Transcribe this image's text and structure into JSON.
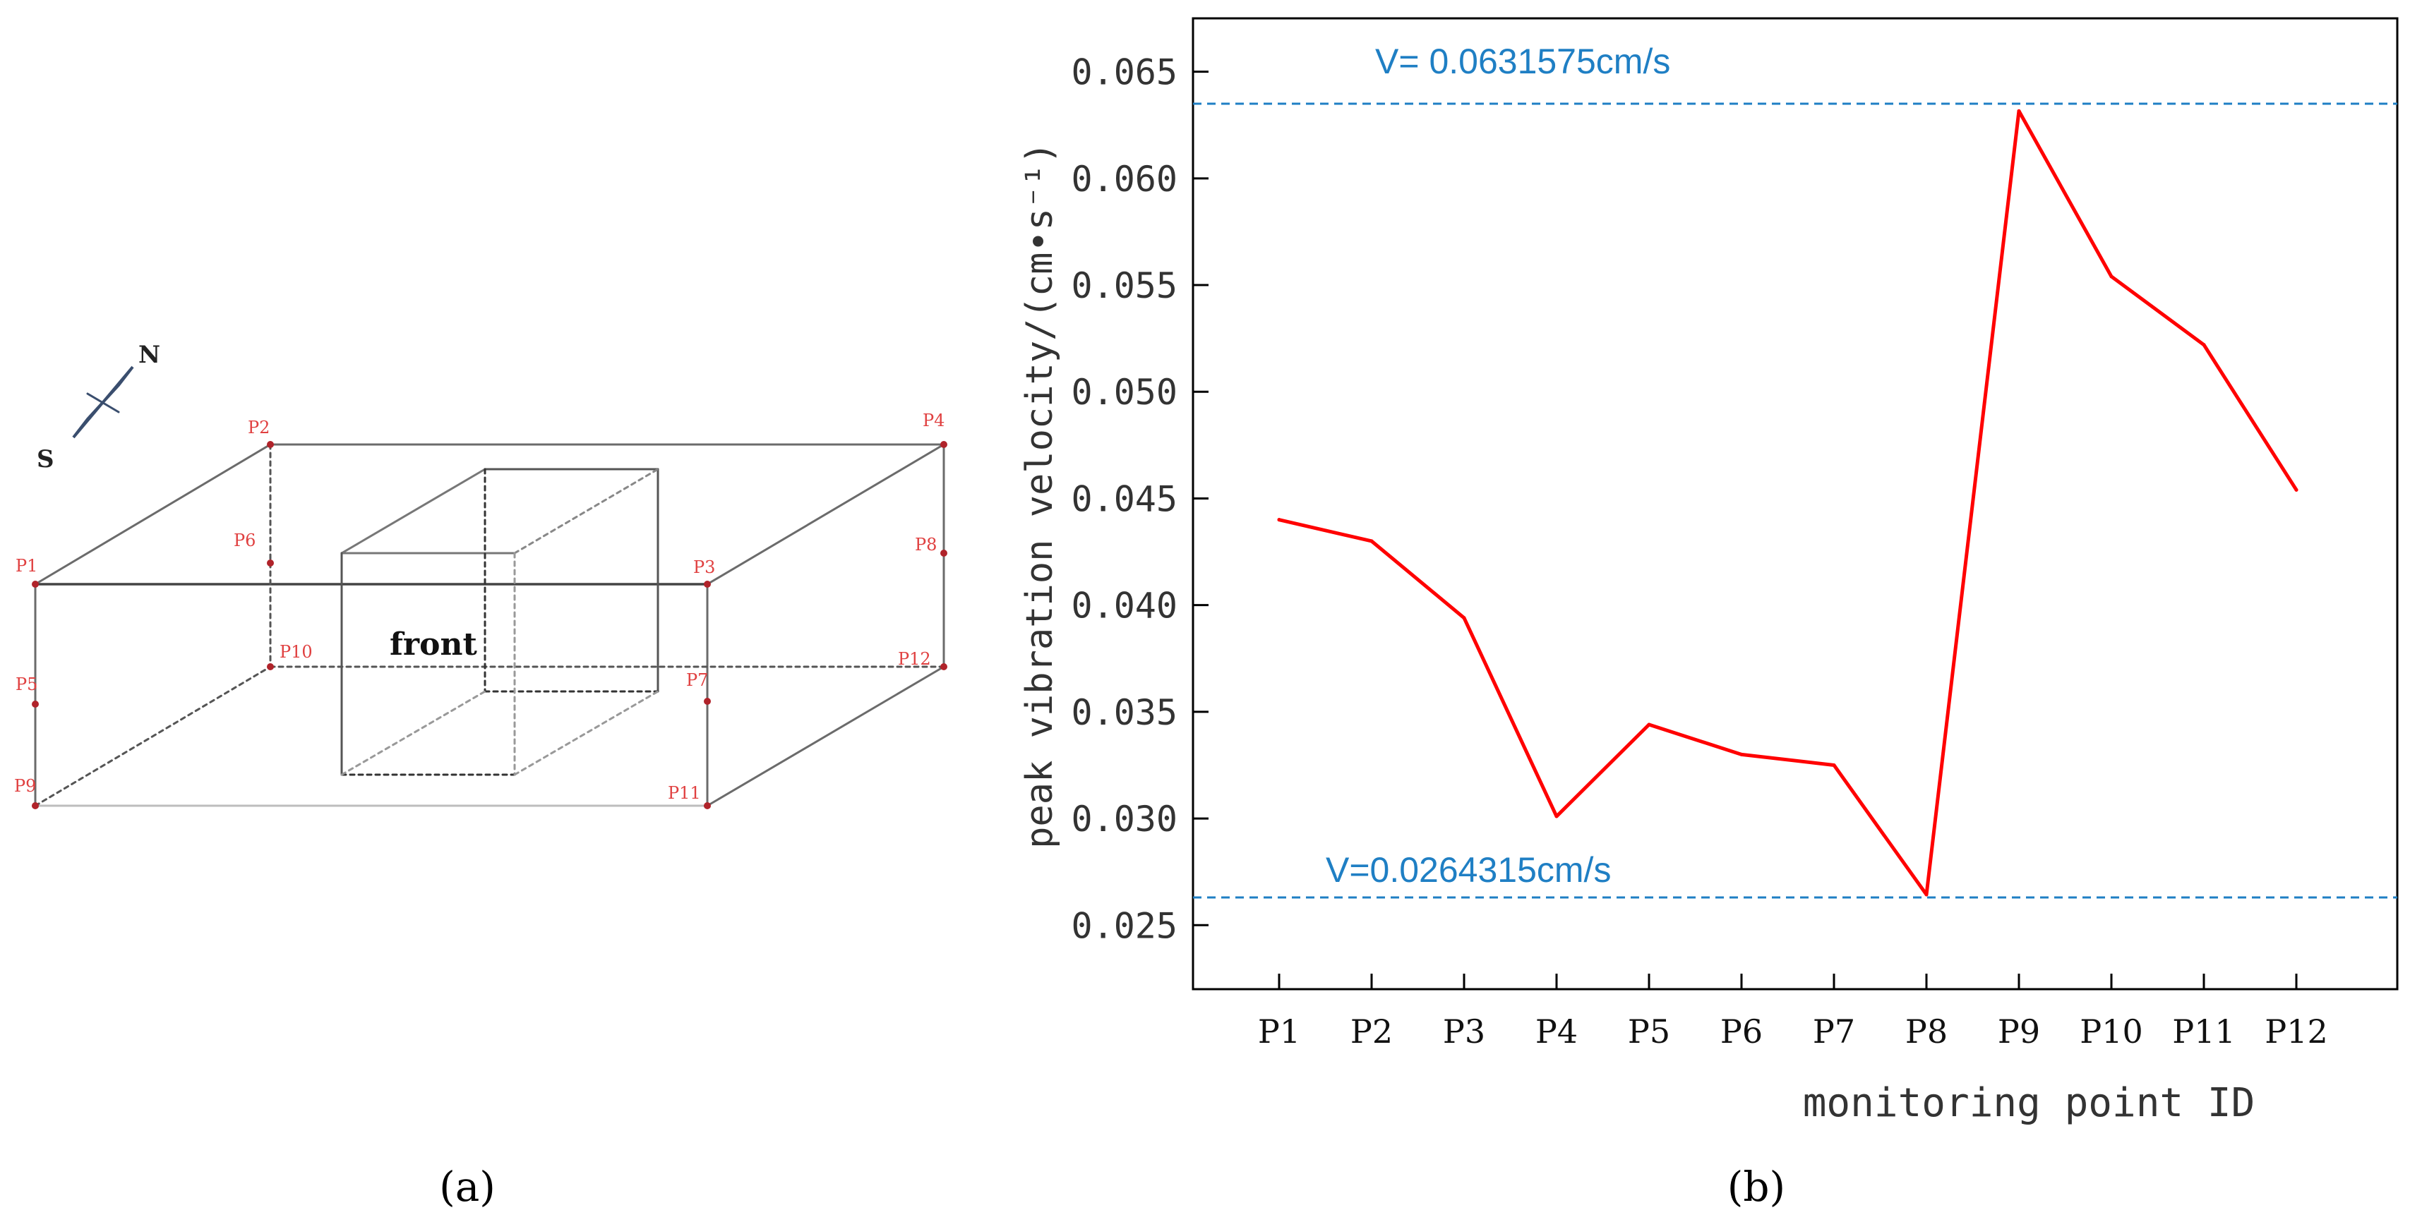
{
  "panel_a": {
    "caption": "(a)",
    "label_front": "front",
    "compass": {
      "north": "N",
      "south": "S"
    },
    "points": [
      "P1",
      "P2",
      "P3",
      "P4",
      "P5",
      "P6",
      "P7",
      "P8",
      "P9",
      "P10",
      "P11",
      "P12"
    ],
    "colors": {
      "point": "#d62222",
      "edge": "#555555"
    }
  },
  "panel_b": {
    "caption": "(b)",
    "upper_label": "V= 0.0631575cm/s",
    "lower_label": "V=0.0264315cm/s",
    "colors": {
      "line": "#ff0000",
      "reference": "#1f7fc4",
      "axis": "#000000"
    }
  },
  "chart_data": {
    "type": "line",
    "title": "",
    "xlabel": "monitoring point ID",
    "ylabel": "peak vibration velocity/(cm•s⁻¹)",
    "categories": [
      "P1",
      "P2",
      "P3",
      "P4",
      "P5",
      "P6",
      "P7",
      "P8",
      "P9",
      "P10",
      "P11",
      "P12"
    ],
    "series": [
      {
        "name": "peak vibration velocity",
        "values": [
          0.044,
          0.043,
          0.0394,
          0.0301,
          0.0344,
          0.033,
          0.0325,
          0.0264315,
          0.0631575,
          0.0554,
          0.0522,
          0.0454
        ]
      }
    ],
    "ylim": [
      0.022,
      0.0675
    ],
    "yticks": [
      0.025,
      0.03,
      0.035,
      0.04,
      0.045,
      0.05,
      0.055,
      0.06,
      0.065
    ],
    "ytick_labels": [
      "0.025",
      "0.030",
      "0.035",
      "0.040",
      "0.045",
      "0.050",
      "0.055",
      "0.060",
      "0.065"
    ],
    "reference_lines": [
      {
        "label": "V= 0.0631575cm/s",
        "value": 0.0635,
        "style": "dashed"
      },
      {
        "label": "V=0.0264315cm/s",
        "value": 0.0263,
        "style": "dashed"
      }
    ],
    "grid": false,
    "legend": "none"
  }
}
